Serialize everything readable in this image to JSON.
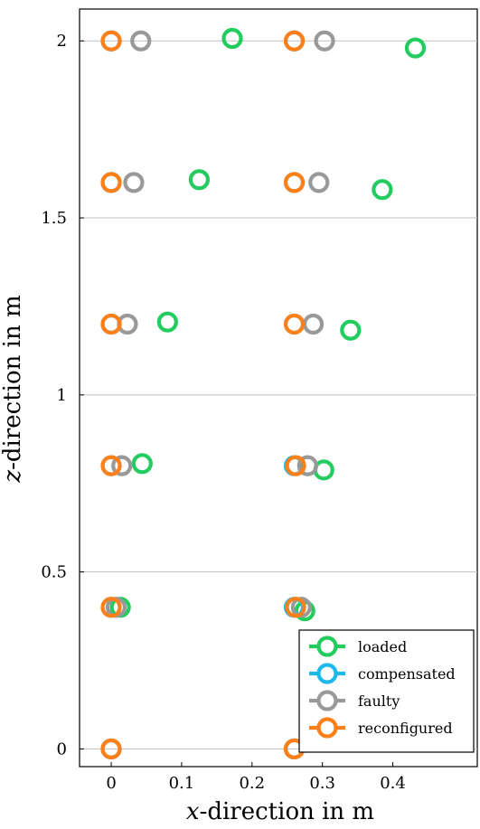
{
  "chart_data": {
    "type": "scatter",
    "xlabel_var": "x",
    "xlabel_rest": "-direction in m",
    "ylabel_var": "z",
    "ylabel_rest": "-direction in m",
    "xlim": [
      -0.045,
      0.52
    ],
    "ylim": [
      -0.05,
      2.09
    ],
    "xticks": [
      0,
      0.1,
      0.2,
      0.3,
      0.4
    ],
    "xtick_labels": [
      "0",
      "0.1",
      "0.2",
      "0.3",
      "0.4"
    ],
    "yticks": [
      0,
      0.5,
      1,
      1.5,
      2
    ],
    "ytick_labels": [
      "0",
      "0.5",
      "1",
      "1.5",
      "2"
    ],
    "grid": "horizontal",
    "legend_position": "bottom-right",
    "series": [
      {
        "name": "loaded",
        "color": "#22cc5e",
        "points": [
          [
            0,
            0
          ],
          [
            0.013,
            0.4
          ],
          [
            0.044,
            0.806
          ],
          [
            0.08,
            1.206
          ],
          [
            0.125,
            1.608
          ],
          [
            0.172,
            2.007
          ],
          [
            0.26,
            0
          ],
          [
            0.275,
            0.39
          ],
          [
            0.302,
            0.788
          ],
          [
            0.34,
            1.183
          ],
          [
            0.385,
            1.58
          ],
          [
            0.432,
            1.98
          ]
        ]
      },
      {
        "name": "compensated",
        "color": "#1fb8ec",
        "points": [
          [
            0,
            0
          ],
          [
            0,
            0.4
          ],
          [
            0,
            0.8
          ],
          [
            0,
            1.2
          ],
          [
            0,
            1.6
          ],
          [
            0,
            2.0
          ],
          [
            0.26,
            0
          ],
          [
            0.26,
            0.4
          ],
          [
            0.26,
            0.8
          ],
          [
            0.26,
            1.2
          ],
          [
            0.26,
            1.6
          ],
          [
            0.26,
            2.0
          ]
        ]
      },
      {
        "name": "faulty",
        "color": "#999999",
        "points": [
          [
            0,
            0
          ],
          [
            0.007,
            0.4
          ],
          [
            0.015,
            0.8
          ],
          [
            0.023,
            1.2
          ],
          [
            0.032,
            1.6
          ],
          [
            0.042,
            2.0
          ],
          [
            0.26,
            0
          ],
          [
            0.27,
            0.4
          ],
          [
            0.279,
            0.8
          ],
          [
            0.287,
            1.2
          ],
          [
            0.295,
            1.6
          ],
          [
            0.303,
            2.0
          ]
        ]
      },
      {
        "name": "reconfigured",
        "color": "#ff8019",
        "points": [
          [
            0,
            0
          ],
          [
            0,
            0.4
          ],
          [
            0,
            0.8
          ],
          [
            0,
            1.2
          ],
          [
            0,
            1.6
          ],
          [
            0,
            2.0
          ],
          [
            0.26,
            0
          ],
          [
            0.262,
            0.4
          ],
          [
            0.262,
            0.8
          ],
          [
            0.26,
            1.2
          ],
          [
            0.26,
            1.6
          ],
          [
            0.26,
            2.0
          ]
        ]
      }
    ]
  }
}
